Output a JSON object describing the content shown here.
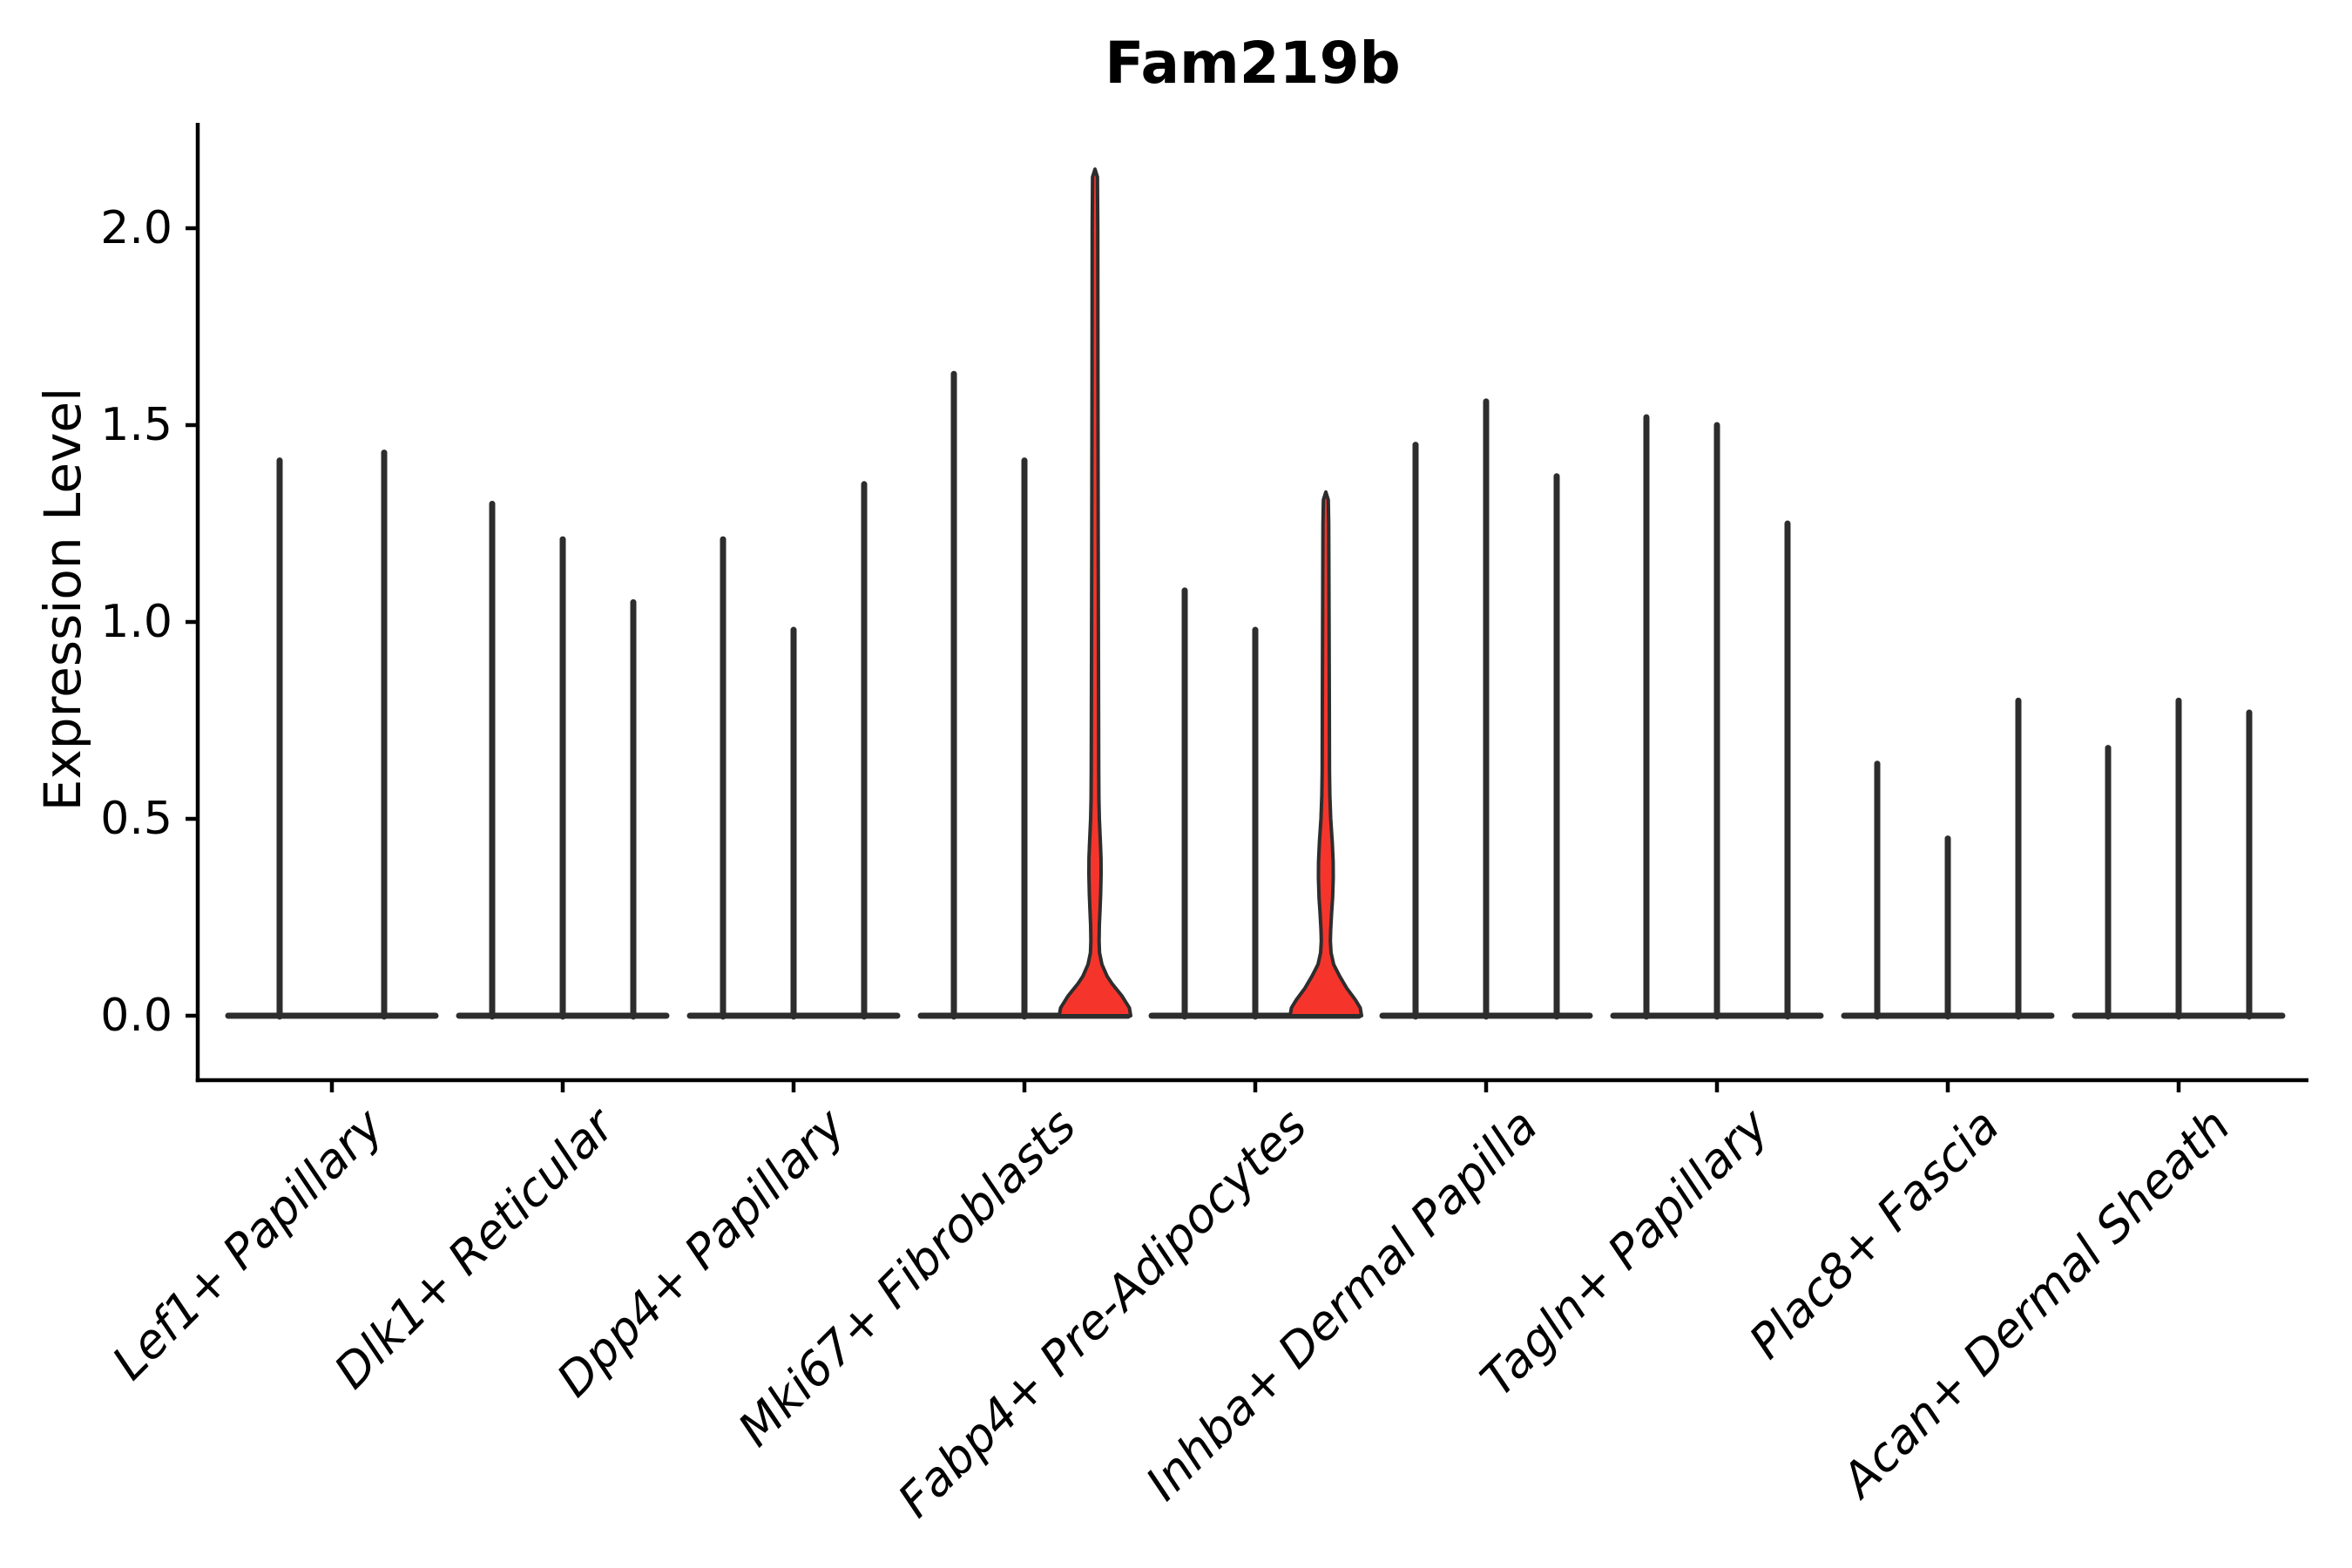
{
  "chart_data": {
    "type": "violin",
    "title": "Fam219b",
    "ylabel": "Expression Level",
    "xlabel": "",
    "yticks": [
      "0.0",
      "0.5",
      "1.0",
      "1.5",
      "2.0"
    ],
    "ytick_values": [
      0,
      0.5,
      1.0,
      1.5,
      2.0
    ],
    "ylim": [
      -0.16,
      2.27
    ],
    "grid": false,
    "legend": "none",
    "description": "Split violin plot of Fam219b expression; each cell-type group shows 2-3 very thin zero-inflated violins (wide flat base at 0, thin spike to max). Two violins are highlighted with red fill.",
    "categories": [
      "Lef1+ Papillary",
      "Dlk1+ Reticular",
      "Dpp4+ Papillary",
      "Mki67+ Fibroblasts",
      "Fabp4+ Pre-Adipocytes",
      "Inhba+ Dermal Papilla",
      "Tagln+ Papillary",
      "Plac8+ Fascia",
      "Acan+ Dermal Sheath"
    ],
    "groups": [
      {
        "category": "Lef1+ Papillary",
        "violins": [
          {
            "max": 1.41,
            "highlight": false
          },
          {
            "max": 1.43,
            "highlight": false
          }
        ]
      },
      {
        "category": "Dlk1+ Reticular",
        "violins": [
          {
            "max": 1.3,
            "highlight": false
          },
          {
            "max": 1.21,
            "highlight": false
          },
          {
            "max": 1.05,
            "highlight": false
          }
        ]
      },
      {
        "category": "Dpp4+ Papillary",
        "violins": [
          {
            "max": 1.21,
            "highlight": false
          },
          {
            "max": 0.98,
            "highlight": false
          },
          {
            "max": 1.35,
            "highlight": false
          }
        ]
      },
      {
        "category": "Mki67+ Fibroblasts",
        "violins": [
          {
            "max": 1.63,
            "highlight": false
          },
          {
            "max": 1.41,
            "highlight": false
          },
          {
            "max": 2.15,
            "highlight": true,
            "profile": [
              [
                0,
                41
              ],
              [
                0.02,
                39.5
              ],
              [
                0.05,
                31
              ],
              [
                0.08,
                20
              ],
              [
                0.1,
                14
              ],
              [
                0.13,
                8
              ],
              [
                0.16,
                5.2
              ],
              [
                0.19,
                4.7
              ],
              [
                0.23,
                5.0
              ],
              [
                0.27,
                5.8
              ],
              [
                0.31,
                6.5
              ],
              [
                0.36,
                7.0
              ],
              [
                0.4,
                6.9
              ],
              [
                0.44,
                6.2
              ],
              [
                0.5,
                5.0
              ],
              [
                0.55,
                4.5
              ],
              [
                0.62,
                4.3
              ],
              [
                0.9,
                4.0
              ],
              [
                1.2,
                3.7
              ],
              [
                1.6,
                3.4
              ],
              [
                2.0,
                3.2
              ],
              [
                2.13,
                2.8
              ],
              [
                2.15,
                0
              ]
            ]
          }
        ]
      },
      {
        "category": "Fabp4+ Pre-Adipocytes",
        "violins": [
          {
            "max": 1.08,
            "highlight": false
          },
          {
            "max": 0.98,
            "highlight": false
          },
          {
            "max": 1.33,
            "highlight": true,
            "profile": [
              [
                0,
                41
              ],
              [
                0.02,
                39.5
              ],
              [
                0.04,
                34
              ],
              [
                0.07,
                24
              ],
              [
                0.1,
                16
              ],
              [
                0.13,
                9
              ],
              [
                0.16,
                6.0
              ],
              [
                0.19,
                5.2
              ],
              [
                0.22,
                5.6
              ],
              [
                0.26,
                6.6
              ],
              [
                0.3,
                7.8
              ],
              [
                0.35,
                8.5
              ],
              [
                0.39,
                8.4
              ],
              [
                0.44,
                7.4
              ],
              [
                0.5,
                5.6
              ],
              [
                0.56,
                4.6
              ],
              [
                0.62,
                4.2
              ],
              [
                0.8,
                4.0
              ],
              [
                1.0,
                3.7
              ],
              [
                1.25,
                3.3
              ],
              [
                1.31,
                2.8
              ],
              [
                1.33,
                0
              ]
            ]
          }
        ]
      },
      {
        "category": "Inhba+ Dermal Papilla",
        "violins": [
          {
            "max": 1.45,
            "highlight": false
          },
          {
            "max": 1.56,
            "highlight": false
          },
          {
            "max": 1.37,
            "highlight": false
          }
        ]
      },
      {
        "category": "Tagln+ Papillary",
        "violins": [
          {
            "max": 1.52,
            "highlight": false
          },
          {
            "max": 1.5,
            "highlight": false
          },
          {
            "max": 1.25,
            "highlight": false
          }
        ]
      },
      {
        "category": "Plac8+ Fascia",
        "violins": [
          {
            "max": 0.64,
            "highlight": false
          },
          {
            "max": 0.45,
            "highlight": false
          },
          {
            "max": 0.8,
            "highlight": false
          }
        ]
      },
      {
        "category": "Acan+ Dermal Sheath",
        "violins": [
          {
            "max": 0.68,
            "highlight": false
          },
          {
            "max": 0.8,
            "highlight": false
          },
          {
            "max": 0.77,
            "highlight": false
          }
        ]
      }
    ],
    "colors": {
      "violin_line": "#2d2d2d",
      "spine": "#000000",
      "highlight_fill": "#f5352c",
      "text": "#000000",
      "background": "#ffffff"
    }
  }
}
